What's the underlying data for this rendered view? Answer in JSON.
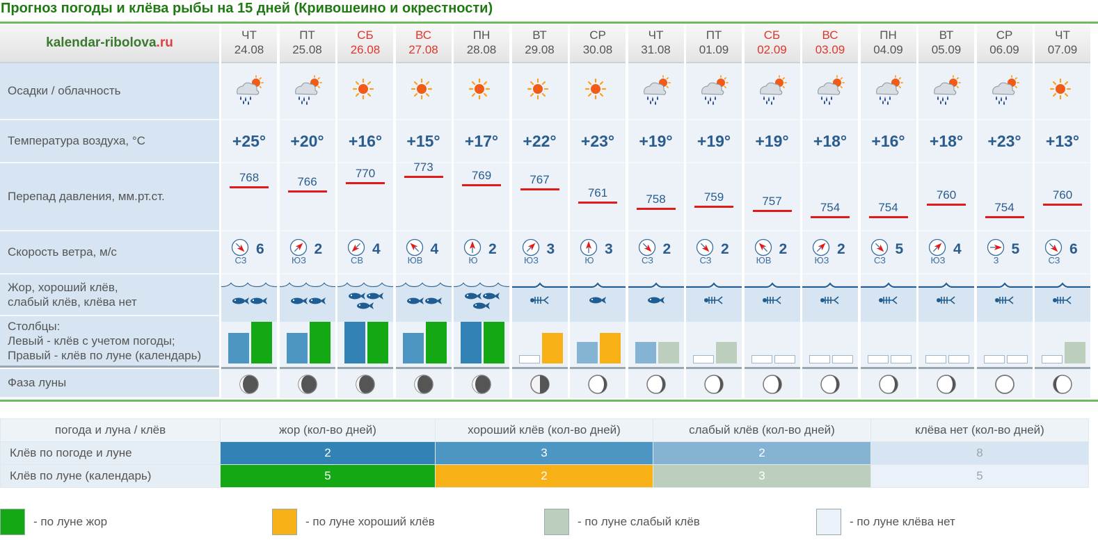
{
  "title": "Прогноз погоды и клёва рыбы на 15 дней (Кривошеино и окрестности)",
  "site": {
    "name": "kalendar-ribolova",
    "tld": ".ru"
  },
  "row_labels": {
    "precip": "Осадки / облачность",
    "temp": "Температура воздуха, °С",
    "pressure": "Перепад давления, мм.рт.ст.",
    "wind": "Скорость ветра, м/с",
    "bite": "Жор, хороший клёв,\nслабый клёв, клёва нет",
    "bars": "Столбцы:\nЛевый - клёв с учетом погоды;\nПравый - клёв по луне (календарь)",
    "moon": "Фаза луны"
  },
  "colors": {
    "zhor_weather": "#3382b6",
    "good_weather": "#4d96c3",
    "weak_weather": "#85b3d4",
    "zhor_moon": "#14a914",
    "good_moon": "#f7b016",
    "weak_moon": "#bccfbc",
    "none_moon": "#eaf1f8"
  },
  "days": [
    {
      "dow": "ЧТ",
      "date": "24.08",
      "weekend": false,
      "weather": "rain-cloud-sun-icon",
      "temp": "+25°",
      "pressure": "768",
      "wind_dir": "СЗ",
      "wind_speed": "6",
      "bite": "good",
      "bar_weather": "good",
      "bar_moon": "zhor",
      "moon": "waning-gibbous"
    },
    {
      "dow": "ПТ",
      "date": "25.08",
      "weekend": false,
      "weather": "rain-cloud-sun-icon",
      "temp": "+20°",
      "pressure": "766",
      "wind_dir": "ЮЗ",
      "wind_speed": "2",
      "bite": "good",
      "bar_weather": "good",
      "bar_moon": "zhor",
      "moon": "waning-gibbous"
    },
    {
      "dow": "СБ",
      "date": "26.08",
      "weekend": true,
      "weather": "sun-icon",
      "temp": "+16°",
      "pressure": "770",
      "wind_dir": "СВ",
      "wind_speed": "4",
      "bite": "zhor",
      "bar_weather": "zhor",
      "bar_moon": "zhor",
      "moon": "waning-gibbous"
    },
    {
      "dow": "ВС",
      "date": "27.08",
      "weekend": true,
      "weather": "sun-icon",
      "temp": "+15°",
      "pressure": "773",
      "wind_dir": "ЮВ",
      "wind_speed": "4",
      "bite": "good",
      "bar_weather": "good",
      "bar_moon": "zhor",
      "moon": "waning-gibbous"
    },
    {
      "dow": "ПН",
      "date": "28.08",
      "weekend": false,
      "weather": "sun-icon",
      "temp": "+17°",
      "pressure": "769",
      "wind_dir": "Ю",
      "wind_speed": "2",
      "bite": "zhor",
      "bar_weather": "zhor",
      "bar_moon": "zhor",
      "moon": "waning-gibbous"
    },
    {
      "dow": "ВТ",
      "date": "29.08",
      "weekend": false,
      "weather": "sun-icon",
      "temp": "+22°",
      "pressure": "767",
      "wind_dir": "ЮЗ",
      "wind_speed": "3",
      "bite": "none",
      "bar_weather": "none",
      "bar_moon": "good",
      "moon": "last-quarter"
    },
    {
      "dow": "СР",
      "date": "30.08",
      "weekend": false,
      "weather": "sun-icon",
      "temp": "+23°",
      "pressure": "761",
      "wind_dir": "Ю",
      "wind_speed": "3",
      "bite": "weak",
      "bar_weather": "weak",
      "bar_moon": "good",
      "moon": "waning-crescent"
    },
    {
      "dow": "ЧТ",
      "date": "31.08",
      "weekend": false,
      "weather": "rain-cloud-sun-icon",
      "temp": "+19°",
      "pressure": "758",
      "wind_dir": "СЗ",
      "wind_speed": "2",
      "bite": "weak",
      "bar_weather": "weak",
      "bar_moon": "weak",
      "moon": "waning-crescent"
    },
    {
      "dow": "ПТ",
      "date": "01.09",
      "weekend": false,
      "weather": "rain-cloud-sun-icon",
      "temp": "+19°",
      "pressure": "759",
      "wind_dir": "СЗ",
      "wind_speed": "2",
      "bite": "none",
      "bar_weather": "none",
      "bar_moon": "weak",
      "moon": "waning-crescent"
    },
    {
      "dow": "СБ",
      "date": "02.09",
      "weekend": true,
      "weather": "rain-cloud-sun-icon",
      "temp": "+19°",
      "pressure": "757",
      "wind_dir": "ЮВ",
      "wind_speed": "2",
      "bite": "none",
      "bar_weather": "none",
      "bar_moon": "none",
      "moon": "waning-crescent"
    },
    {
      "dow": "ВС",
      "date": "03.09",
      "weekend": true,
      "weather": "rain-cloud-sun-icon",
      "temp": "+18°",
      "pressure": "754",
      "wind_dir": "ЮЗ",
      "wind_speed": "2",
      "bite": "none",
      "bar_weather": "none",
      "bar_moon": "none",
      "moon": "waning-crescent"
    },
    {
      "dow": "ПН",
      "date": "04.09",
      "weekend": false,
      "weather": "rain-cloud-sun-icon",
      "temp": "+16°",
      "pressure": "754",
      "wind_dir": "СЗ",
      "wind_speed": "5",
      "bite": "none",
      "bar_weather": "none",
      "bar_moon": "none",
      "moon": "waning-crescent"
    },
    {
      "dow": "ВТ",
      "date": "05.09",
      "weekend": false,
      "weather": "rain-cloud-sun-icon",
      "temp": "+18°",
      "pressure": "760",
      "wind_dir": "ЮЗ",
      "wind_speed": "4",
      "bite": "none",
      "bar_weather": "none",
      "bar_moon": "none",
      "moon": "waning-crescent"
    },
    {
      "dow": "СР",
      "date": "06.09",
      "weekend": false,
      "weather": "rain-cloud-sun-icon",
      "temp": "+23°",
      "pressure": "754",
      "wind_dir": "З",
      "wind_speed": "5",
      "bite": "none",
      "bar_weather": "none",
      "bar_moon": "none",
      "moon": "new"
    },
    {
      "dow": "ЧТ",
      "date": "07.09",
      "weekend": false,
      "weather": "sun-icon",
      "temp": "+13°",
      "pressure": "760",
      "wind_dir": "СЗ",
      "wind_speed": "6",
      "bite": "none",
      "bar_weather": "none",
      "bar_moon": "weak",
      "moon": "waxing-crescent"
    }
  ],
  "summary": {
    "headers": [
      "погода и луна / клёв",
      "жор (кол-во дней)",
      "хороший клёв (кол-во дней)",
      "слабый клёв (кол-во дней)",
      "клёва нет (кол-во дней)"
    ],
    "rows": [
      {
        "label": "Клёв по погоде и луне",
        "values": [
          "2",
          "3",
          "2",
          "8"
        ],
        "colors": [
          "#3382b6",
          "#4d96c3",
          "#85b3d4",
          "#d6e5f1"
        ]
      },
      {
        "label": "Клёв по луне (календарь)",
        "values": [
          "5",
          "2",
          "3",
          "5"
        ],
        "colors": [
          "#14a914",
          "#f7b016",
          "#bccfbc",
          "#eaf1f8"
        ]
      }
    ]
  },
  "legend": [
    {
      "label": "- по луне жор",
      "color": "#14a914"
    },
    {
      "label": "- по луне хороший клёв",
      "color": "#f7b016"
    },
    {
      "label": "- по луне слабый клёв",
      "color": "#bccfbc"
    },
    {
      "label": "- по луне клёва нет",
      "color": "#eaf1f8"
    }
  ]
}
